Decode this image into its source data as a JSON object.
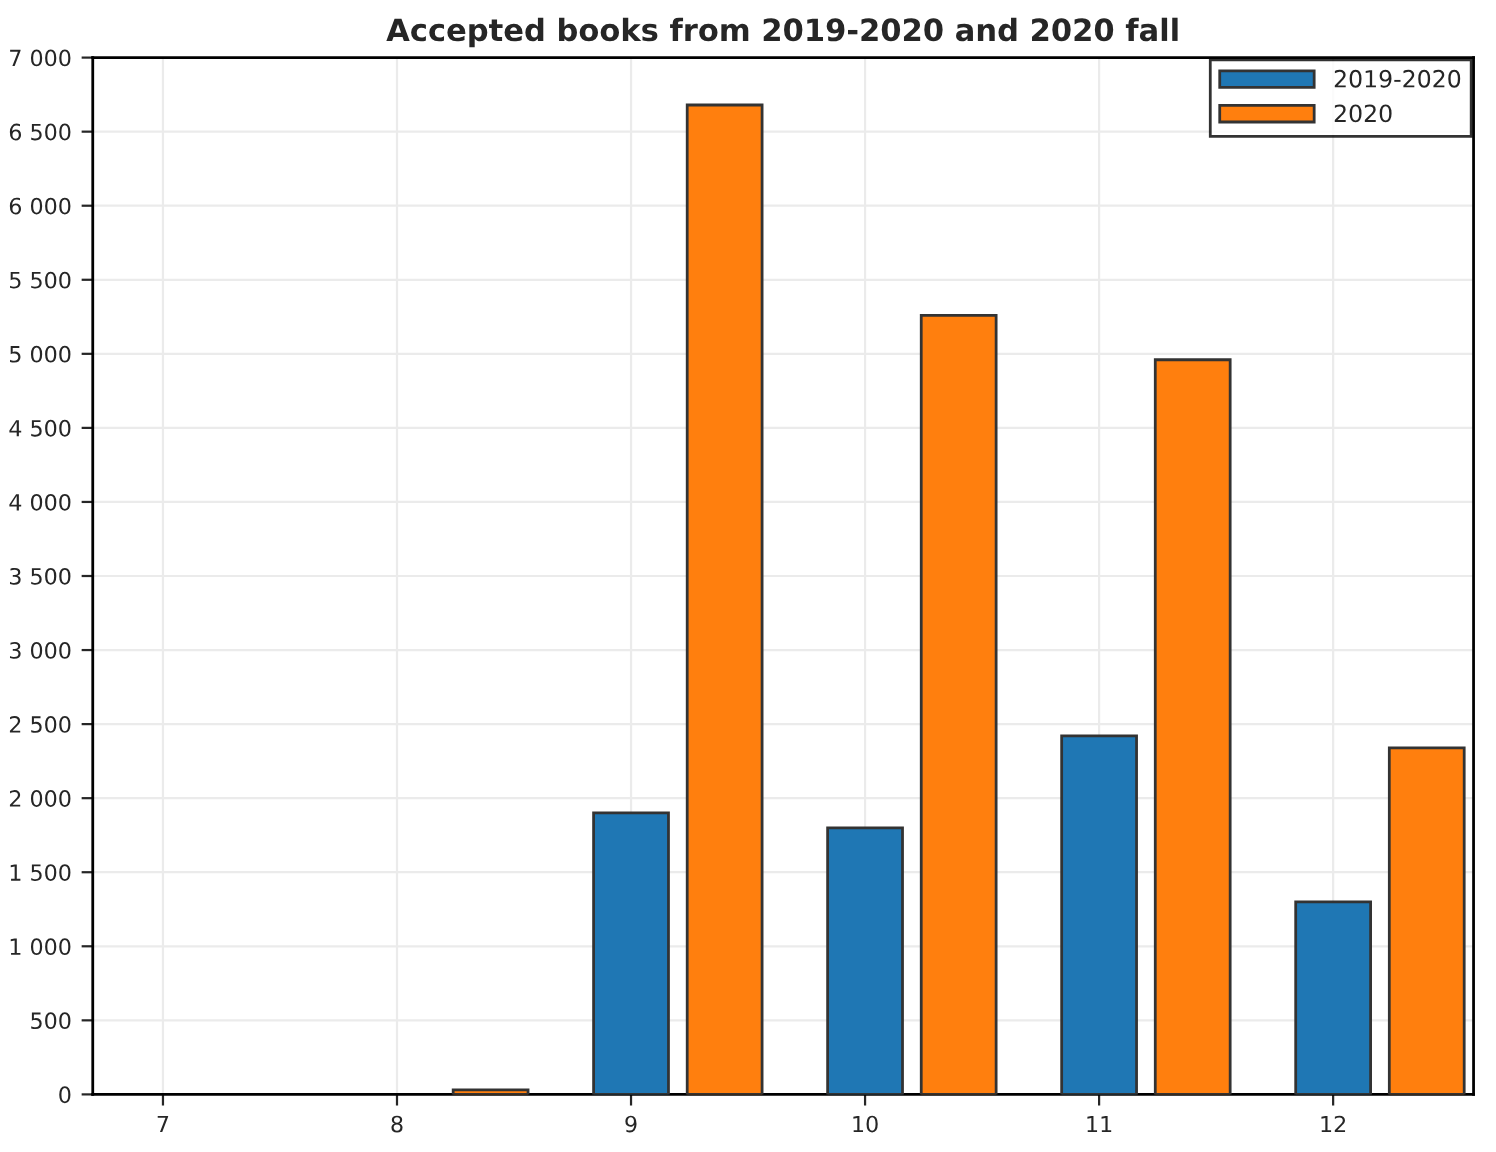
{
  "chart_data": {
    "type": "bar",
    "title": "Accepted books from 2019-2020 and 2020 fall",
    "series": [
      {
        "name": "2019-2020",
        "color": "#1f77b4",
        "x": [
          9,
          10,
          11,
          12
        ],
        "values": [
          1900,
          1800,
          2420,
          1300
        ]
      },
      {
        "name": "2020",
        "color": "#ff7f0e",
        "x": [
          8.4,
          9.4,
          10.4,
          11.4,
          12.4
        ],
        "values": [
          30,
          6680,
          5260,
          4960,
          2340
        ]
      }
    ],
    "xlim": [
      6.7,
      12.6
    ],
    "xticks": [
      7,
      8,
      9,
      10,
      11,
      12
    ],
    "ylim": [
      0,
      7000
    ],
    "yticks": [
      0,
      500,
      {
        "value": 1000,
        "label": "1 000"
      },
      {
        "value": 1500,
        "label": "1 500"
      },
      {
        "value": 2000,
        "label": "2 000"
      },
      {
        "value": 2500,
        "label": "2 500"
      },
      {
        "value": 3000,
        "label": "3 000"
      },
      {
        "value": 3500,
        "label": "3 500"
      },
      {
        "value": 4000,
        "label": "4 000"
      },
      {
        "value": 4500,
        "label": "4 500"
      },
      {
        "value": 5000,
        "label": "5 000"
      },
      {
        "value": 5500,
        "label": "5 500"
      },
      {
        "value": 6000,
        "label": "6 000"
      },
      {
        "value": 6500,
        "label": "6 500"
      },
      {
        "value": 7000,
        "label": "7 000"
      }
    ],
    "grid": true,
    "legend": "top right"
  }
}
